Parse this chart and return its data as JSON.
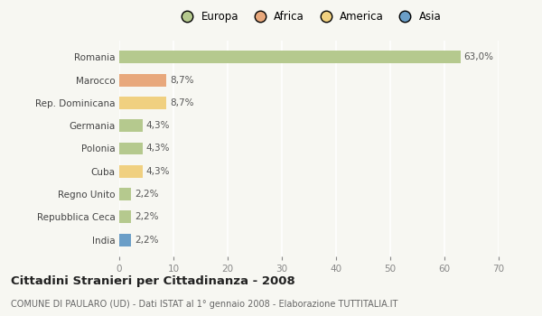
{
  "categories": [
    "Romania",
    "Marocco",
    "Rep. Dominicana",
    "Germania",
    "Polonia",
    "Cuba",
    "Regno Unito",
    "Repubblica Ceca",
    "India"
  ],
  "values": [
    63.0,
    8.7,
    8.7,
    4.3,
    4.3,
    4.3,
    2.2,
    2.2,
    2.2
  ],
  "labels": [
    "63,0%",
    "8,7%",
    "8,7%",
    "4,3%",
    "4,3%",
    "4,3%",
    "2,2%",
    "2,2%",
    "2,2%"
  ],
  "colors": [
    "#b5c98e",
    "#e8a87c",
    "#f0d080",
    "#b5c98e",
    "#b5c98e",
    "#f0d080",
    "#b5c98e",
    "#b5c98e",
    "#6b9ec7"
  ],
  "legend_labels": [
    "Europa",
    "Africa",
    "America",
    "Asia"
  ],
  "legend_colors": [
    "#b5c98e",
    "#e8a87c",
    "#f0d080",
    "#6b9ec7"
  ],
  "xlim": [
    0,
    70
  ],
  "xticks": [
    0,
    10,
    20,
    30,
    40,
    50,
    60,
    70
  ],
  "title": "Cittadini Stranieri per Cittadinanza - 2008",
  "subtitle": "COMUNE DI PAULARO (UD) - Dati ISTAT al 1° gennaio 2008 - Elaborazione TUTTITALIA.IT",
  "background_color": "#f7f7f2",
  "grid_color": "#ffffff",
  "bar_height": 0.55
}
